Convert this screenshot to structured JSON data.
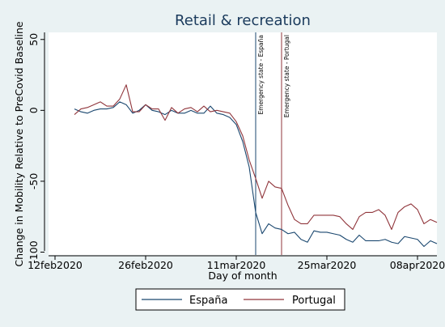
{
  "colors": {
    "background": "#eaf2f3",
    "plot_background": "#ffffff",
    "title": "#1a3a5c",
    "espana": "#1a476f",
    "portugal": "#90353b",
    "annotation_espana": "#1a476f",
    "annotation_portugal": "#90353b"
  },
  "chart_data": {
    "type": "line",
    "title": "Retail & recreation",
    "xlabel": "Day of month",
    "ylabel": "Change in Mobility Relative to PreCovid Baseline",
    "xlim": [
      "2020-02-11",
      "2020-04-11"
    ],
    "ylim": [
      -102,
      55
    ],
    "grid": false,
    "legend_position": "bottom",
    "x_ticks": [
      {
        "date": "2020-02-12",
        "label": "12feb2020"
      },
      {
        "date": "2020-02-26",
        "label": "26feb2020"
      },
      {
        "date": "2020-03-11",
        "label": "11mar2020"
      },
      {
        "date": "2020-03-25",
        "label": "25mar2020"
      },
      {
        "date": "2020-04-08",
        "label": "08apr2020"
      }
    ],
    "y_ticks": [
      {
        "value": 50,
        "label": "50"
      },
      {
        "value": 0,
        "label": "0"
      },
      {
        "value": -50,
        "label": "-50"
      },
      {
        "value": -100,
        "label": "-100"
      }
    ],
    "annotations": [
      {
        "date": "2020-03-14",
        "label": "Emergency state - España",
        "color_key": "annotation_espana"
      },
      {
        "date": "2020-03-18",
        "label": "Emergency state - Portugal",
        "color_key": "annotation_portugal"
      }
    ],
    "x": [
      "2020-02-15",
      "2020-02-16",
      "2020-02-17",
      "2020-02-18",
      "2020-02-19",
      "2020-02-20",
      "2020-02-21",
      "2020-02-22",
      "2020-02-23",
      "2020-02-24",
      "2020-02-25",
      "2020-02-26",
      "2020-02-27",
      "2020-02-28",
      "2020-02-29",
      "2020-03-01",
      "2020-03-02",
      "2020-03-03",
      "2020-03-04",
      "2020-03-05",
      "2020-03-06",
      "2020-03-07",
      "2020-03-08",
      "2020-03-09",
      "2020-03-10",
      "2020-03-11",
      "2020-03-12",
      "2020-03-13",
      "2020-03-14",
      "2020-03-15",
      "2020-03-16",
      "2020-03-17",
      "2020-03-18",
      "2020-03-19",
      "2020-03-20",
      "2020-03-21",
      "2020-03-22",
      "2020-03-23",
      "2020-03-24",
      "2020-03-25",
      "2020-03-26",
      "2020-03-27",
      "2020-03-28",
      "2020-03-29",
      "2020-03-30",
      "2020-03-31",
      "2020-04-01",
      "2020-04-02",
      "2020-04-03",
      "2020-04-04",
      "2020-04-05",
      "2020-04-06",
      "2020-04-07",
      "2020-04-08",
      "2020-04-09",
      "2020-04-10",
      "2020-04-11"
    ],
    "series": [
      {
        "name": "España",
        "color_key": "espana",
        "values": [
          1,
          -1,
          -2,
          0,
          1,
          1,
          2,
          6,
          4,
          -2,
          0,
          4,
          0,
          -1,
          -3,
          0,
          -2,
          -2,
          0,
          -2,
          -2,
          3,
          -2,
          -3,
          -5,
          -10,
          -22,
          -40,
          -72,
          -87,
          -80,
          -83,
          -84,
          -87,
          -86,
          -91,
          -93,
          -85,
          -86,
          -86,
          -87,
          -88,
          -91,
          -93,
          -88,
          -92,
          -92,
          -92,
          -91,
          -93,
          -94,
          -89,
          -90,
          -91,
          -96,
          -92,
          -94
        ]
      },
      {
        "name": "Portugal",
        "color_key": "portugal",
        "values": [
          -3,
          1,
          2,
          4,
          6,
          3,
          3,
          8,
          18,
          -1,
          -1,
          4,
          1,
          1,
          -7,
          2,
          -2,
          1,
          2,
          -1,
          3,
          -1,
          0,
          -1,
          -2,
          -8,
          -18,
          -35,
          -48,
          -62,
          -50,
          -54,
          -55,
          -67,
          -77,
          -80,
          -80,
          -74,
          -74,
          -74,
          -74,
          -75,
          -80,
          -84,
          -75,
          -72,
          -72,
          -70,
          -74,
          -84,
          -72,
          -68,
          -66,
          -70,
          -80,
          -77,
          -79
        ]
      }
    ]
  }
}
